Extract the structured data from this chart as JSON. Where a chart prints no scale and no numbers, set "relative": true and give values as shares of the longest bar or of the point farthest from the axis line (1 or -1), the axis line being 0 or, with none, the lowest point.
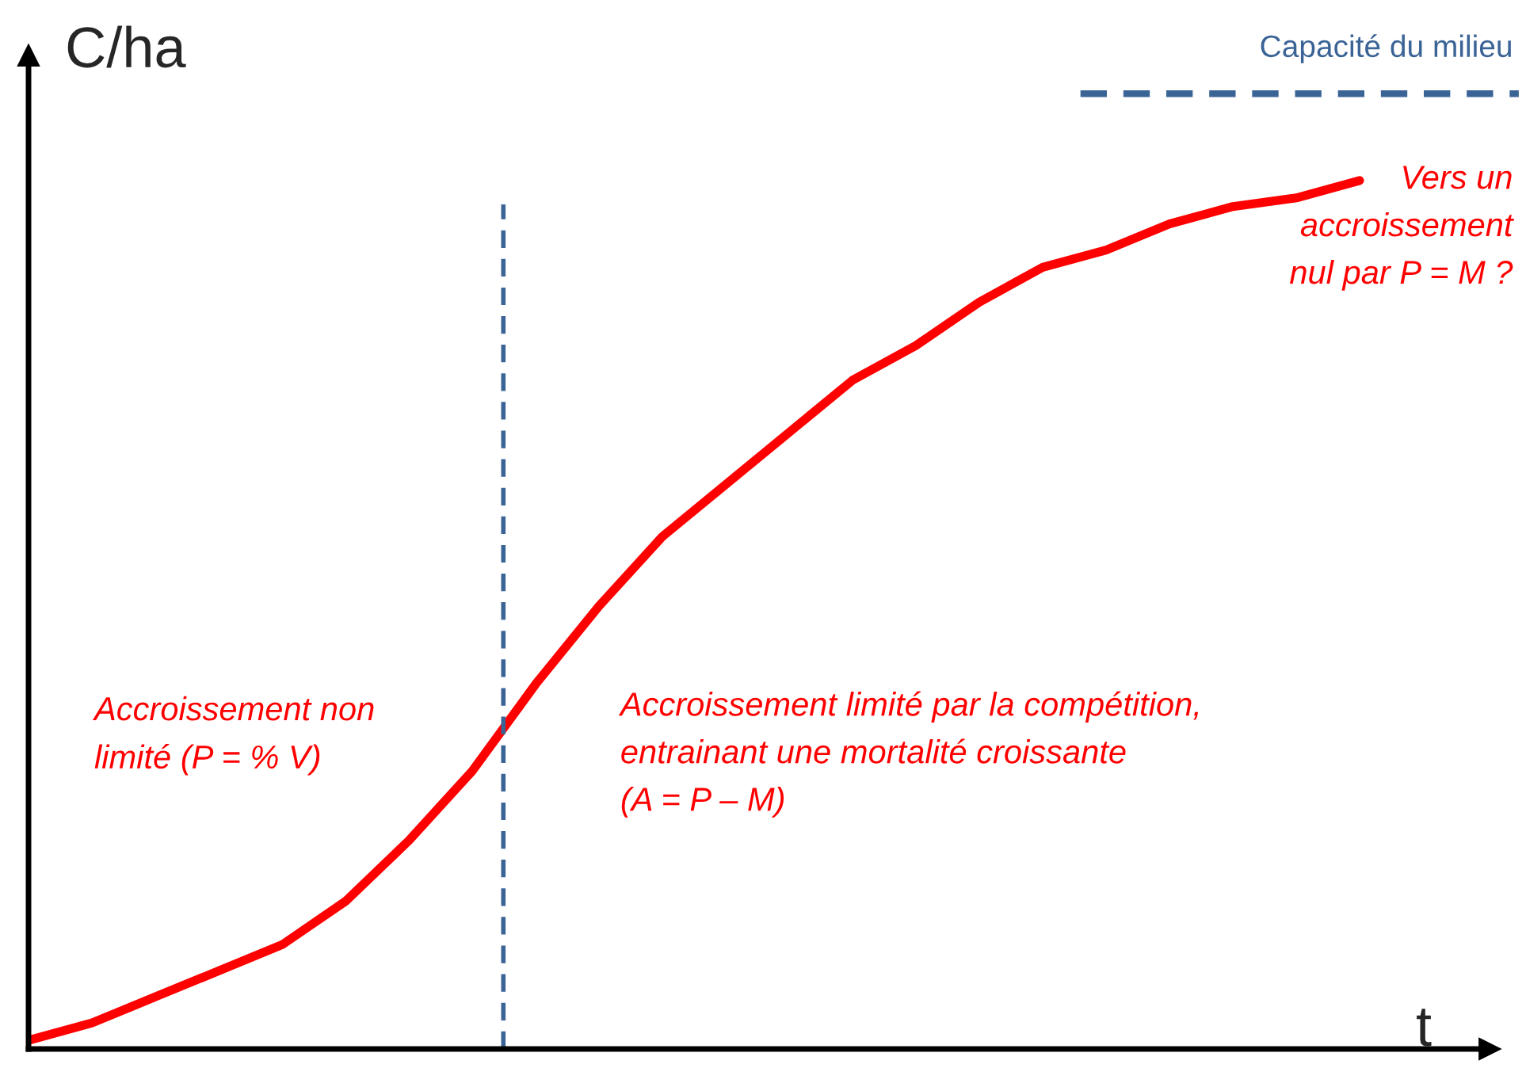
{
  "chart_data": {
    "type": "line",
    "relative": true,
    "xlabel": "t",
    "ylabel": "C/ha",
    "categories": [
      null,
      null,
      null,
      null,
      null,
      null,
      null,
      null,
      null,
      null,
      null,
      null,
      null,
      null,
      null,
      null,
      null,
      null,
      null,
      null,
      null,
      null
    ],
    "series": [
      {
        "color": "#ff0000",
        "values": [
          0.01,
          0.03,
          0.06,
          0.09,
          0.12,
          0.17,
          0.24,
          0.32,
          0.42,
          0.51,
          0.59,
          0.65,
          0.71,
          0.77,
          0.81,
          0.86,
          0.9,
          0.92,
          0.95,
          0.97,
          0.98,
          1.0
        ]
      }
    ],
    "marker": "none",
    "line_style": "solid",
    "ref_lines": [
      {
        "axis": "y",
        "value": 1.1,
        "label": "Capacité du milieu",
        "color": "#3a6396",
        "line_style": "dashed"
      }
    ],
    "annotations": [
      "Accroissement non\nlimité (P = % V)",
      "Accroissement limité par la compétition,\nentrainant une mortalité croissante\n(A = P – M)",
      "Vers un\naccroissement\nnul par P = M ?"
    ]
  }
}
